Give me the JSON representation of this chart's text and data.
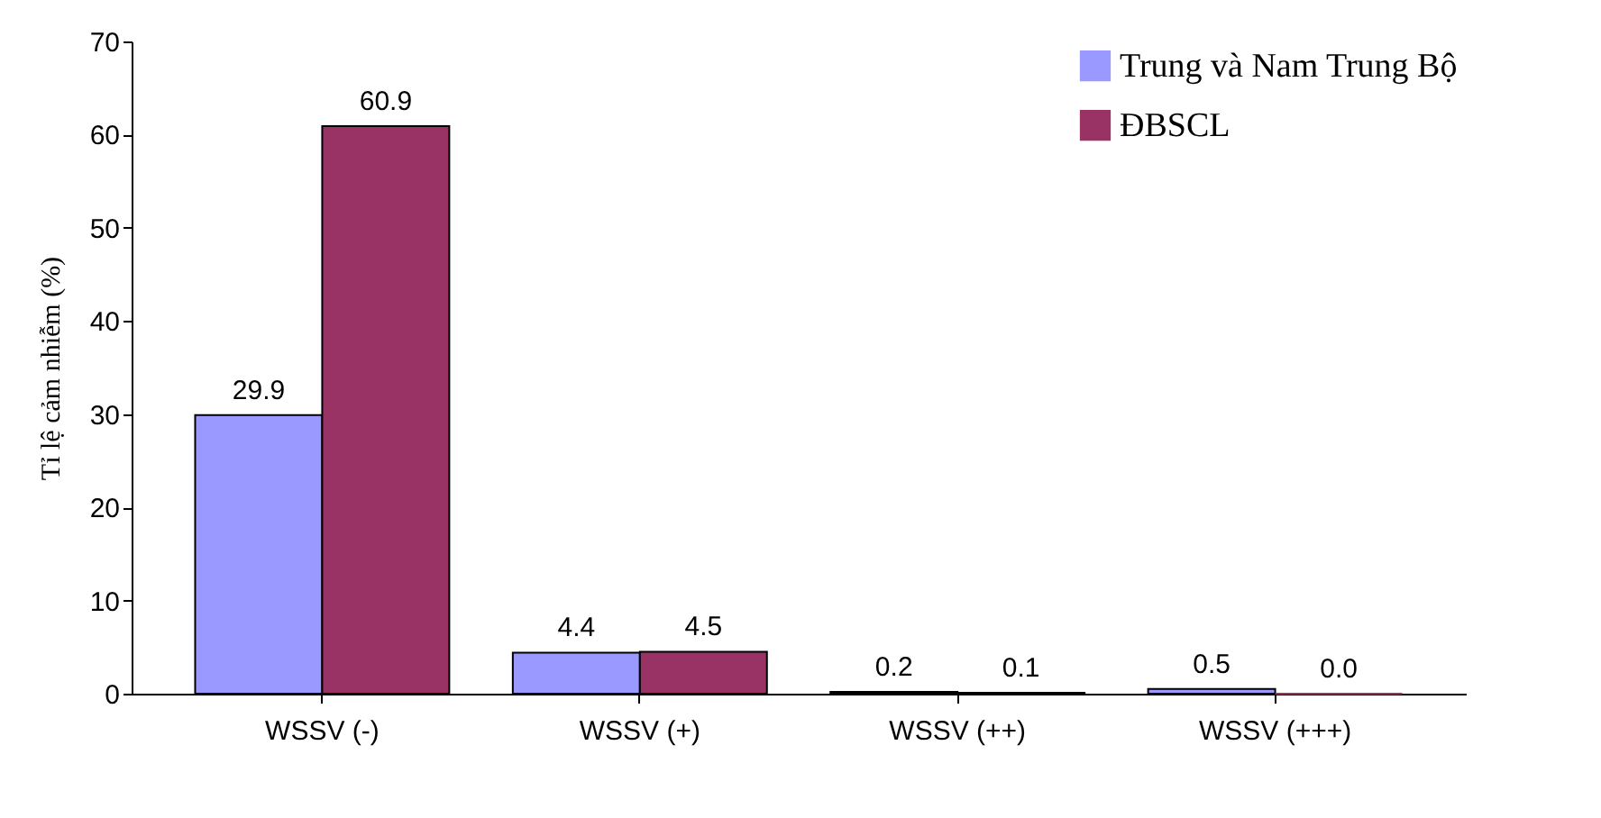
{
  "chart_data": {
    "type": "bar",
    "ylabel": "Tỉ lệ cảm nhiễm (%)",
    "categories": [
      "WSSV (-)",
      "WSSV (+)",
      "WSSV (++)",
      "WSSV (+++)"
    ],
    "series": [
      {
        "name": "Trung và Nam Trung Bộ",
        "color": "#9999ff",
        "values": [
          29.9,
          4.4,
          0.2,
          0.5
        ],
        "value_labels": [
          "29.9",
          "4.4",
          "0.2",
          "0.5"
        ]
      },
      {
        "name": "ĐBSCL",
        "color": "#993366",
        "values": [
          60.9,
          4.5,
          0.1,
          0.0
        ],
        "value_labels": [
          "60.9",
          "4.5",
          "0.1",
          "0.0"
        ]
      }
    ],
    "ylim": [
      0,
      70
    ],
    "yticks": [
      0,
      10,
      20,
      30,
      40,
      50,
      60,
      70
    ],
    "grid": false,
    "legend": "top right"
  }
}
